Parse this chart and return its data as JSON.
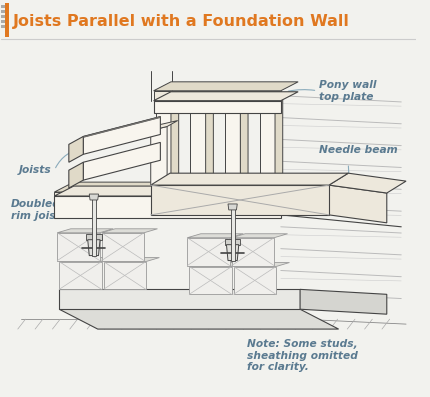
{
  "title": "Joists Parallel with a Foundation Wall",
  "title_color": "#E07820",
  "title_fontsize": 11.5,
  "bg_color": "#F2F2EE",
  "label_color": "#5A7A90",
  "line_color": "#444444",
  "line_color_light": "#888888",
  "wood_face": "#F8F5EE",
  "wood_top": "#EDE8DC",
  "wood_side": "#E0DAC8",
  "block_face": "#F0EFEC",
  "block_edge": "#888888",
  "labels": {
    "joists": "Joists",
    "doubled_rim": "Doubled\nrim joists",
    "pony_wall": "Pony wall\ntop plate",
    "needle_beam": "Needle beam",
    "note": "Note: Some studs,\nsheathing omitted\nfor clarity."
  }
}
